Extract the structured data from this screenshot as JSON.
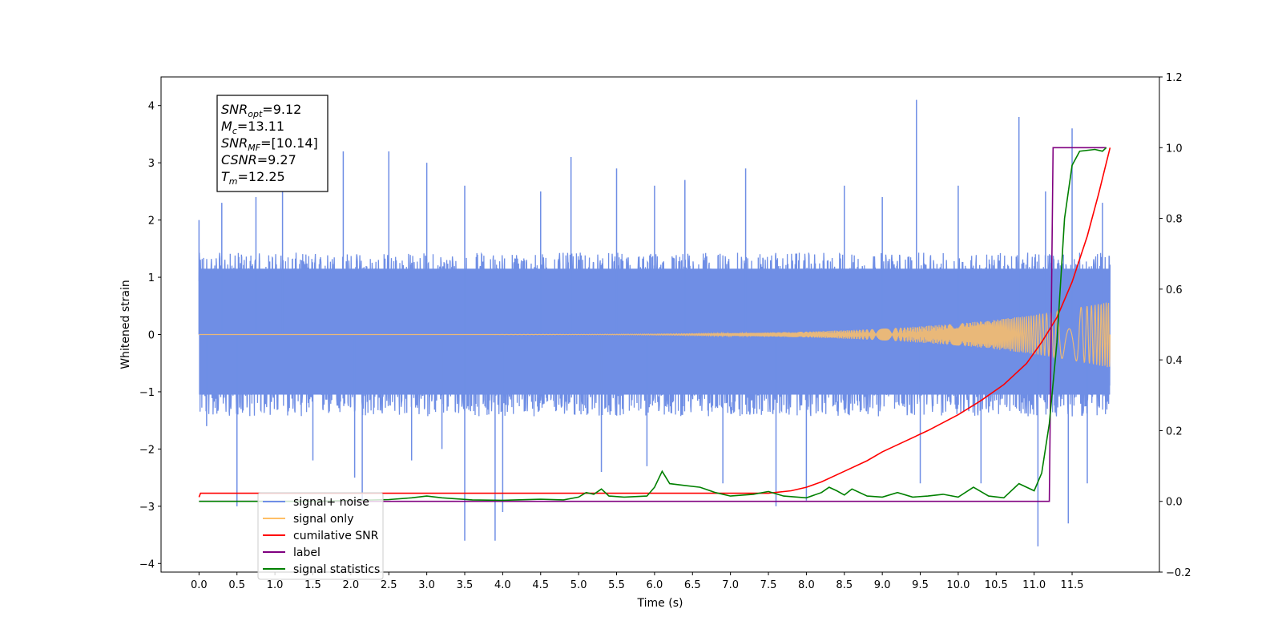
{
  "chart_data": {
    "type": "line",
    "title": "",
    "xlabel": "Time (s)",
    "ylabel": "Whitened strain",
    "xlim": [
      -0.5,
      12.65
    ],
    "ylim": [
      -4.15,
      4.5
    ],
    "y2lim": [
      -0.2,
      1.2
    ],
    "grid": false,
    "legend_position": "lower-left",
    "x_ticks": [
      "0.0",
      "0.5",
      "1.0",
      "1.5",
      "2.0",
      "2.5",
      "3.0",
      "3.5",
      "4.0",
      "4.5",
      "5.0",
      "5.5",
      "6.0",
      "6.5",
      "7.0",
      "7.5",
      "8.0",
      "8.5",
      "9.0",
      "9.5",
      "10.0",
      "10.5",
      "11.0",
      "11.5"
    ],
    "y_ticks": [
      "4",
      "3",
      "2",
      "1",
      "0",
      "−1",
      "−2",
      "−3",
      "−4"
    ],
    "y2_ticks": [
      "1.2",
      "1.0",
      "0.8",
      "0.6",
      "0.4",
      "0.2",
      "0.0",
      "−0.2"
    ],
    "stats_box": [
      {
        "base": "SNR",
        "sub": "opt",
        "value": "=9.12"
      },
      {
        "base": "M",
        "sub": "c",
        "value": "=13.11"
      },
      {
        "base": "SNR",
        "sub": "MF",
        "value": "=[10.14]"
      },
      {
        "base": "CSNR",
        "sub": "",
        "value": "=9.27"
      },
      {
        "base": "T",
        "sub": "m",
        "value": "=12.25"
      }
    ],
    "series": [
      {
        "name": "signal+ noise",
        "axis": "left",
        "color": "#6f8ee5",
        "description_note": "noise band",
        "band_low": -1.3,
        "band_high": 1.3,
        "spikes": [
          [
            0.0,
            2.0
          ],
          [
            0.1,
            -1.6
          ],
          [
            0.3,
            2.3
          ],
          [
            0.5,
            -3.0
          ],
          [
            0.75,
            2.4
          ],
          [
            1.1,
            2.7
          ],
          [
            1.5,
            -2.2
          ],
          [
            1.9,
            3.2
          ],
          [
            2.05,
            -2.5
          ],
          [
            2.15,
            -2.9
          ],
          [
            2.5,
            3.2
          ],
          [
            2.8,
            -2.2
          ],
          [
            3.0,
            3.0
          ],
          [
            3.2,
            -2.0
          ],
          [
            3.5,
            -3.6
          ],
          [
            3.5,
            2.6
          ],
          [
            3.9,
            -3.6
          ],
          [
            4.0,
            -3.1
          ],
          [
            4.5,
            2.5
          ],
          [
            4.9,
            3.1
          ],
          [
            5.3,
            -2.4
          ],
          [
            5.5,
            2.9
          ],
          [
            5.9,
            -2.3
          ],
          [
            6.0,
            2.6
          ],
          [
            6.4,
            2.7
          ],
          [
            6.9,
            -2.6
          ],
          [
            7.2,
            2.9
          ],
          [
            7.6,
            -3.0
          ],
          [
            8.0,
            -2.9
          ],
          [
            8.5,
            2.6
          ],
          [
            9.0,
            2.4
          ],
          [
            9.45,
            4.1
          ],
          [
            9.5,
            -2.6
          ],
          [
            10.0,
            2.6
          ],
          [
            10.3,
            -2.6
          ],
          [
            10.8,
            3.8
          ],
          [
            11.05,
            -3.7
          ],
          [
            11.15,
            2.5
          ],
          [
            11.45,
            -3.3
          ],
          [
            11.5,
            3.6
          ],
          [
            11.7,
            -2.6
          ],
          [
            11.9,
            2.3
          ]
        ]
      },
      {
        "name": "signal only",
        "axis": "left",
        "color": "#ffbf66",
        "amplitude_start": 0.0,
        "amplitude_end": 0.58,
        "t_start": 0.0,
        "t_end": 12.0
      },
      {
        "name": "cumilative SNR",
        "axis": "right",
        "color": "#ff0000",
        "points": [
          [
            0.0,
            0.012
          ],
          [
            0.02,
            0.023
          ],
          [
            7.5,
            0.023
          ],
          [
            7.8,
            0.03
          ],
          [
            8.0,
            0.04
          ],
          [
            8.2,
            0.055
          ],
          [
            8.5,
            0.085
          ],
          [
            8.8,
            0.115
          ],
          [
            9.0,
            0.14
          ],
          [
            9.3,
            0.17
          ],
          [
            9.6,
            0.2
          ],
          [
            10.0,
            0.245
          ],
          [
            10.3,
            0.285
          ],
          [
            10.6,
            0.33
          ],
          [
            10.9,
            0.39
          ],
          [
            11.1,
            0.45
          ],
          [
            11.3,
            0.52
          ],
          [
            11.5,
            0.62
          ],
          [
            11.7,
            0.75
          ],
          [
            11.85,
            0.87
          ],
          [
            12.0,
            1.0
          ]
        ]
      },
      {
        "name": "label",
        "axis": "right",
        "color": "#800080",
        "points": [
          [
            0.0,
            0.0
          ],
          [
            11.2,
            0.0
          ],
          [
            11.25,
            1.0
          ],
          [
            11.95,
            1.0
          ]
        ]
      },
      {
        "name": "signal statistics",
        "axis": "right",
        "color": "#008000",
        "points": [
          [
            0.0,
            0.0
          ],
          [
            1.5,
            0.0
          ],
          [
            2.5,
            0.005
          ],
          [
            2.8,
            0.01
          ],
          [
            3.0,
            0.015
          ],
          [
            3.2,
            0.01
          ],
          [
            3.6,
            0.004
          ],
          [
            4.0,
            0.003
          ],
          [
            4.5,
            0.006
          ],
          [
            4.8,
            0.004
          ],
          [
            5.0,
            0.012
          ],
          [
            5.1,
            0.025
          ],
          [
            5.2,
            0.02
          ],
          [
            5.3,
            0.035
          ],
          [
            5.4,
            0.015
          ],
          [
            5.6,
            0.012
          ],
          [
            5.9,
            0.015
          ],
          [
            6.0,
            0.04
          ],
          [
            6.1,
            0.085
          ],
          [
            6.2,
            0.05
          ],
          [
            6.4,
            0.045
          ],
          [
            6.6,
            0.04
          ],
          [
            6.8,
            0.025
          ],
          [
            7.0,
            0.015
          ],
          [
            7.3,
            0.02
          ],
          [
            7.5,
            0.028
          ],
          [
            7.7,
            0.015
          ],
          [
            8.0,
            0.01
          ],
          [
            8.2,
            0.025
          ],
          [
            8.3,
            0.04
          ],
          [
            8.4,
            0.03
          ],
          [
            8.5,
            0.018
          ],
          [
            8.6,
            0.035
          ],
          [
            8.8,
            0.015
          ],
          [
            9.0,
            0.012
          ],
          [
            9.2,
            0.025
          ],
          [
            9.4,
            0.012
          ],
          [
            9.6,
            0.015
          ],
          [
            9.8,
            0.02
          ],
          [
            10.0,
            0.012
          ],
          [
            10.2,
            0.04
          ],
          [
            10.4,
            0.015
          ],
          [
            10.6,
            0.01
          ],
          [
            10.8,
            0.05
          ],
          [
            11.0,
            0.03
          ],
          [
            11.1,
            0.08
          ],
          [
            11.2,
            0.22
          ],
          [
            11.3,
            0.45
          ],
          [
            11.4,
            0.8
          ],
          [
            11.5,
            0.95
          ],
          [
            11.6,
            0.99
          ],
          [
            11.8,
            0.995
          ],
          [
            11.9,
            0.99
          ],
          [
            11.95,
            1.0
          ]
        ]
      }
    ]
  }
}
